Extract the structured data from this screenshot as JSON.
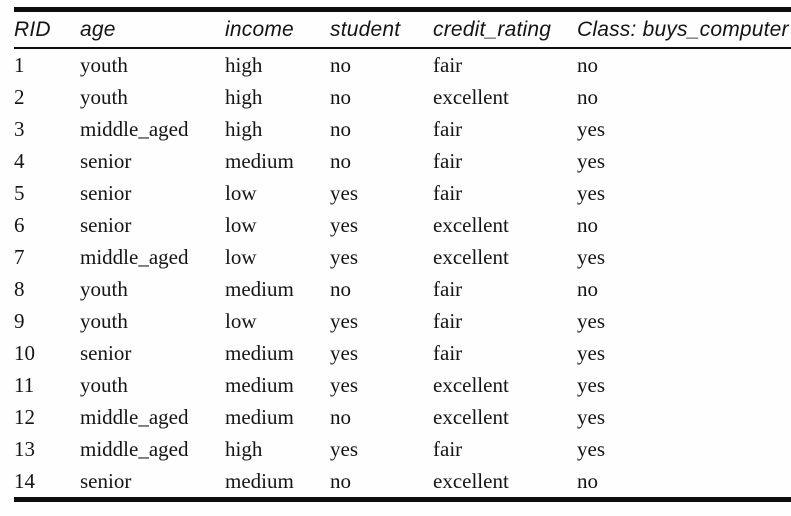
{
  "page": {
    "background": "#fefefe",
    "text_color": "#141414",
    "rule_color": "#0d0d0d"
  },
  "table": {
    "columns": [
      {
        "key": "rid",
        "label": "RID"
      },
      {
        "key": "age",
        "label": "age"
      },
      {
        "key": "income",
        "label": "income"
      },
      {
        "key": "student",
        "label": "student"
      },
      {
        "key": "credit_rating",
        "label": "credit_rating"
      },
      {
        "key": "class",
        "label": "Class: buys_computer"
      }
    ],
    "rows": [
      [
        "1",
        "youth",
        "high",
        "no",
        "fair",
        "no"
      ],
      [
        "2",
        "youth",
        "high",
        "no",
        "excellent",
        "no"
      ],
      [
        "3",
        "middle_aged",
        "high",
        "no",
        "fair",
        "yes"
      ],
      [
        "4",
        "senior",
        "medium",
        "no",
        "fair",
        "yes"
      ],
      [
        "5",
        "senior",
        "low",
        "yes",
        "fair",
        "yes"
      ],
      [
        "6",
        "senior",
        "low",
        "yes",
        "excellent",
        "no"
      ],
      [
        "7",
        "middle_aged",
        "low",
        "yes",
        "excellent",
        "yes"
      ],
      [
        "8",
        "youth",
        "medium",
        "no",
        "fair",
        "no"
      ],
      [
        "9",
        "youth",
        "low",
        "yes",
        "fair",
        "yes"
      ],
      [
        "10",
        "senior",
        "medium",
        "yes",
        "fair",
        "yes"
      ],
      [
        "11",
        "youth",
        "medium",
        "yes",
        "excellent",
        "yes"
      ],
      [
        "12",
        "middle_aged",
        "medium",
        "no",
        "excellent",
        "yes"
      ],
      [
        "13",
        "middle_aged",
        "high",
        "yes",
        "fair",
        "yes"
      ],
      [
        "14",
        "senior",
        "medium",
        "no",
        "excellent",
        "no"
      ]
    ]
  }
}
